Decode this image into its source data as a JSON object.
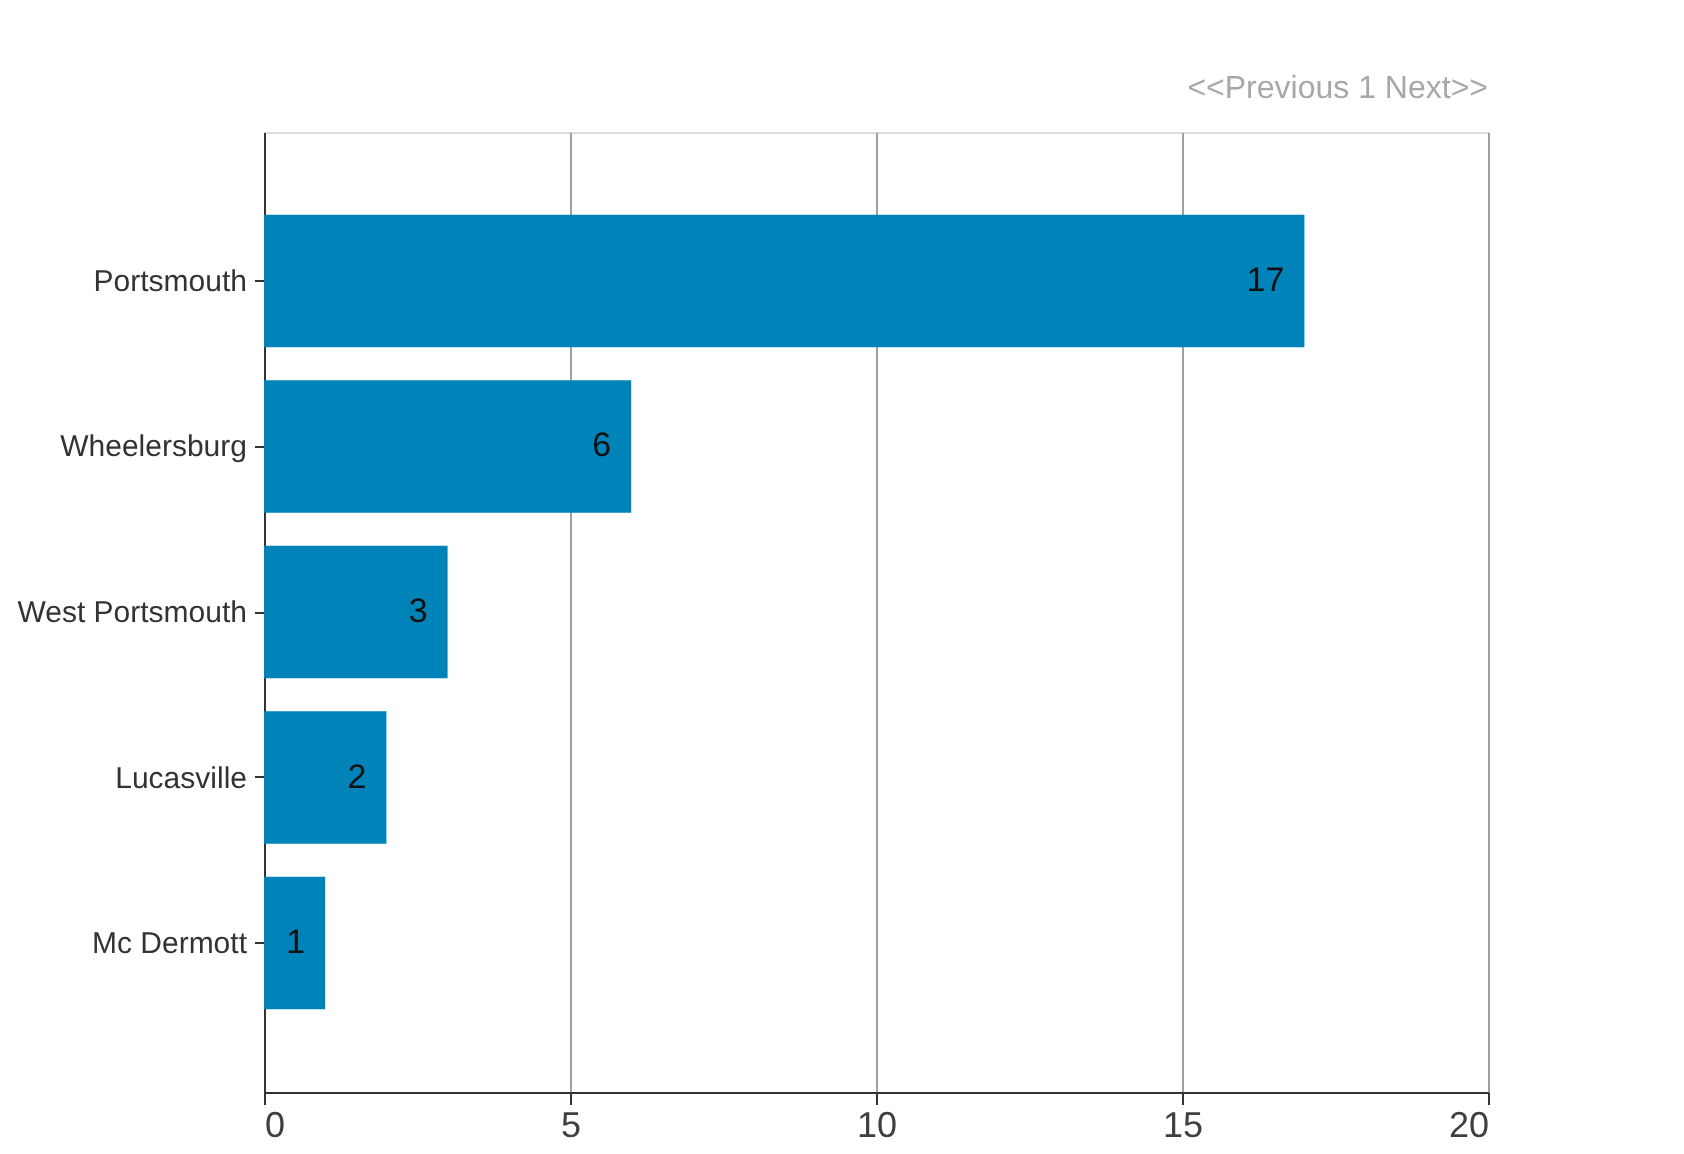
{
  "chart_data": {
    "type": "bar",
    "orientation": "horizontal",
    "categories": [
      "Portsmouth",
      "Wheelersburg",
      "West Portsmouth",
      "Lucasville",
      "Mc Dermott"
    ],
    "values": [
      17,
      6,
      3,
      2,
      1
    ],
    "color": "#0083b9",
    "xlim": [
      0,
      20
    ],
    "xticks": [
      0,
      5,
      10,
      15,
      20
    ],
    "grid": "x",
    "data_labels": true,
    "annotations": [
      "<<Previous 1 Next>>"
    ]
  }
}
